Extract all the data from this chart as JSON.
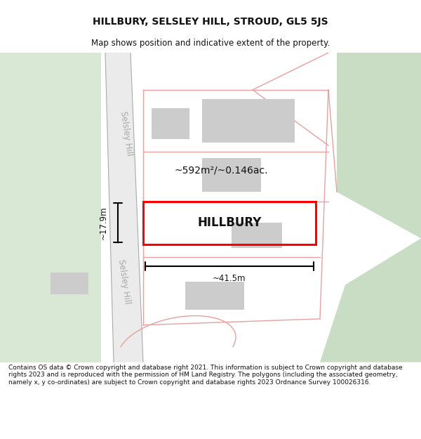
{
  "title": "HILLBURY, SELSLEY HILL, STROUD, GL5 5JS",
  "subtitle": "Map shows position and indicative extent of the property.",
  "footer": "Contains OS data © Crown copyright and database right 2021. This information is subject to Crown copyright and database rights 2023 and is reproduced with the permission of HM Land Registry. The polygons (including the associated geometry, namely x, y co-ordinates) are subject to Crown copyright and database rights 2023 Ordnance Survey 100026316.",
  "bg_color": "#f0f4ee",
  "map_bg": "#ffffff",
  "road_color": "#e0e0e0",
  "plot_color": "#ff0000",
  "building_color": "#cccccc",
  "green_left_color": "#d8e8d5",
  "green_right_color": "#c8ddc4",
  "pink_outline_color": "#e8a0a0",
  "street_label": "Selsley Hill",
  "property_label": "HILLBURY",
  "area_label": "~592m²/~0.146ac.",
  "width_label": "~41.5m",
  "height_label": "~17.9m",
  "title_fontsize": 10,
  "subtitle_fontsize": 8.5,
  "footer_fontsize": 6.5
}
